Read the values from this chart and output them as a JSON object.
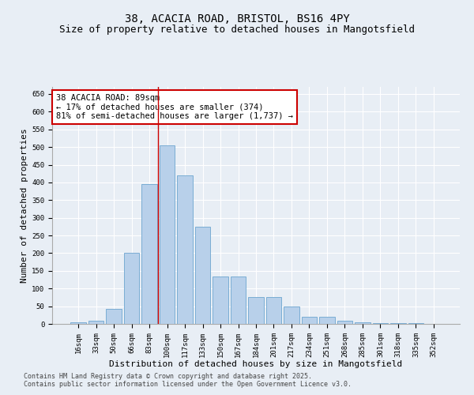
{
  "title_line1": "38, ACACIA ROAD, BRISTOL, BS16 4PY",
  "title_line2": "Size of property relative to detached houses in Mangotsfield",
  "xlabel": "Distribution of detached houses by size in Mangotsfield",
  "ylabel": "Number of detached properties",
  "categories": [
    "16sqm",
    "33sqm",
    "50sqm",
    "66sqm",
    "83sqm",
    "100sqm",
    "117sqm",
    "133sqm",
    "150sqm",
    "167sqm",
    "184sqm",
    "201sqm",
    "217sqm",
    "234sqm",
    "251sqm",
    "268sqm",
    "285sqm",
    "301sqm",
    "318sqm",
    "335sqm",
    "352sqm"
  ],
  "values": [
    5,
    10,
    43,
    200,
    395,
    505,
    420,
    275,
    135,
    135,
    75,
    75,
    50,
    20,
    20,
    10,
    5,
    3,
    3,
    2,
    1
  ],
  "bar_color": "#b8d0ea",
  "bar_edge_color": "#7aadd4",
  "vline_x_index": 5,
  "vline_color": "#cc0000",
  "annotation_text": "38 ACACIA ROAD: 89sqm\n← 17% of detached houses are smaller (374)\n81% of semi-detached houses are larger (1,737) →",
  "annotation_box_color": "#ffffff",
  "annotation_box_edge_color": "#cc0000",
  "ylim": [
    0,
    670
  ],
  "yticks": [
    0,
    50,
    100,
    150,
    200,
    250,
    300,
    350,
    400,
    450,
    500,
    550,
    600,
    650
  ],
  "background_color": "#e8eef5",
  "grid_color": "#ffffff",
  "footer_line1": "Contains HM Land Registry data © Crown copyright and database right 2025.",
  "footer_line2": "Contains public sector information licensed under the Open Government Licence v3.0.",
  "title_fontsize": 10,
  "subtitle_fontsize": 9,
  "tick_fontsize": 6.5,
  "label_fontsize": 8,
  "annotation_fontsize": 7.5,
  "footer_fontsize": 6
}
